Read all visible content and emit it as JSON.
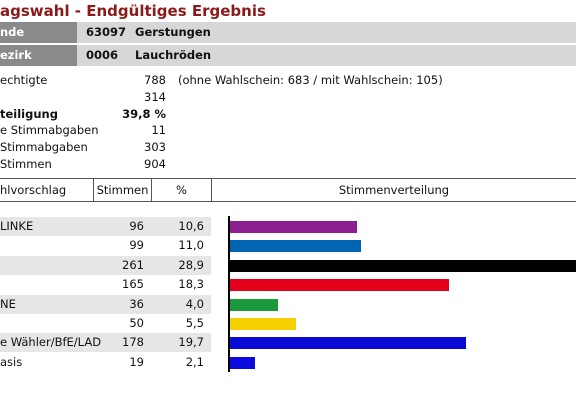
{
  "header": {
    "title": "agswahl - Endgültiges Ergebnis"
  },
  "gemeinde": {
    "label": "nde",
    "code": "63097",
    "name": "Gerstungen"
  },
  "bezirk": {
    "label": "ezirk",
    "code": "0006",
    "name": "Lauchröden"
  },
  "stats": [
    {
      "label": "echtigte",
      "value": "788",
      "note": "(ohne Wahlschein: 683 / mit Wahlschein: 105)",
      "bold": false
    },
    {
      "label": "",
      "value": "314",
      "note": "",
      "bold": false
    },
    {
      "label": "teiligung",
      "value": "39,8 %",
      "note": "",
      "bold": true
    },
    {
      "label": "e Stimmabgaben",
      "value": "11",
      "note": "",
      "bold": false
    },
    {
      "label": "Stimmabgaben",
      "value": "303",
      "note": "",
      "bold": false
    },
    {
      "label": "Stimmen",
      "value": "904",
      "note": "",
      "bold": false
    }
  ],
  "table": {
    "col_party": "hlvorschlag",
    "col_votes": "Stimmen",
    "col_pct": "%",
    "col_chart": "Stimmenverteilung"
  },
  "chart_data": {
    "type": "bar",
    "categories": [
      "LINKE",
      "",
      "",
      "",
      "NE",
      "",
      "e Wähler/BfE/LAD",
      "asis"
    ],
    "values": [
      96,
      99,
      261,
      165,
      36,
      50,
      178,
      19
    ],
    "percent_labels": [
      "10,6",
      "11,0",
      "28,9",
      "18,3",
      "4,0",
      "5,5",
      "19,7",
      "2,1"
    ],
    "colors": [
      "#8b1f8f",
      "#0066b3",
      "#000000",
      "#e3001b",
      "#1a9a3c",
      "#f5d000",
      "#0a0ad8",
      "#0b0be0"
    ],
    "title": "",
    "xlabel": "",
    "ylabel": ""
  }
}
